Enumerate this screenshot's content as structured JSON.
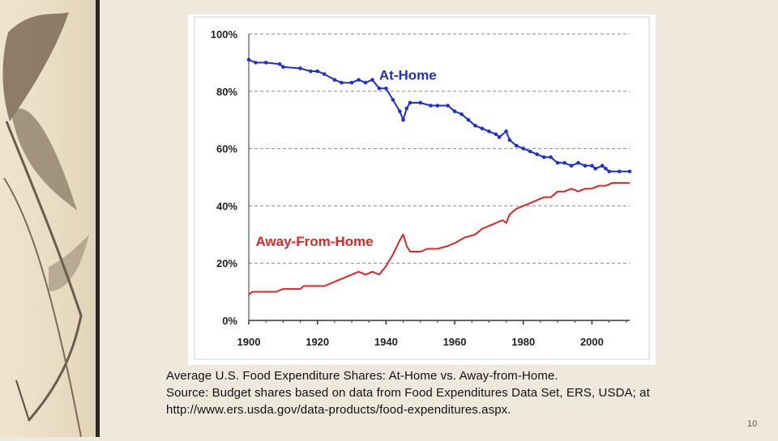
{
  "caption": {
    "line1": "Average U.S. Food Expenditure Shares: At-Home vs. Away-from-Home.",
    "line2": "Source: Budget shares based on data from Food Expenditures Data Set, ERS, USDA; at",
    "line3": "http://www.ers.usda.gov/data-products/food-expenditures.aspx."
  },
  "page_number": "10",
  "chart_data": {
    "type": "line",
    "title": "",
    "xlabel": "",
    "ylabel": "",
    "xlim": [
      1900,
      2011
    ],
    "ylim": [
      0,
      100
    ],
    "x_ticks": [
      1900,
      1920,
      1940,
      1960,
      1980,
      2000
    ],
    "x_tick_labels": [
      "1900",
      "1920",
      "1940",
      "1960",
      "1980",
      "2000"
    ],
    "y_ticks": [
      0,
      20,
      40,
      60,
      80,
      100
    ],
    "y_tick_labels": [
      "0%",
      "20%",
      "40%",
      "60%",
      "80%",
      "100%"
    ],
    "grid": "horizontal-dashed",
    "series": [
      {
        "name": "At-Home",
        "color": "#1f2fd6",
        "markers": true,
        "points": [
          [
            1900,
            91
          ],
          [
            1902,
            90
          ],
          [
            1905,
            90
          ],
          [
            1909,
            89.5
          ],
          [
            1910,
            88.5
          ],
          [
            1915,
            88
          ],
          [
            1918,
            87
          ],
          [
            1920,
            87
          ],
          [
            1922,
            86
          ],
          [
            1925,
            84
          ],
          [
            1927,
            83
          ],
          [
            1930,
            83
          ],
          [
            1932,
            84
          ],
          [
            1934,
            83
          ],
          [
            1936,
            84
          ],
          [
            1938,
            81
          ],
          [
            1940,
            81
          ],
          [
            1942,
            77
          ],
          [
            1944,
            73
          ],
          [
            1945,
            70
          ],
          [
            1946,
            74
          ],
          [
            1947,
            76
          ],
          [
            1950,
            76
          ],
          [
            1953,
            75
          ],
          [
            1955,
            75
          ],
          [
            1958,
            75
          ],
          [
            1960,
            73
          ],
          [
            1962,
            72
          ],
          [
            1964,
            70
          ],
          [
            1966,
            68
          ],
          [
            1968,
            67
          ],
          [
            1970,
            66
          ],
          [
            1972,
            65
          ],
          [
            1973,
            64
          ],
          [
            1975,
            66
          ],
          [
            1976,
            63
          ],
          [
            1978,
            61
          ],
          [
            1980,
            60
          ],
          [
            1982,
            59
          ],
          [
            1984,
            58
          ],
          [
            1986,
            57
          ],
          [
            1988,
            57
          ],
          [
            1990,
            55
          ],
          [
            1992,
            55
          ],
          [
            1994,
            54
          ],
          [
            1996,
            55
          ],
          [
            1998,
            54
          ],
          [
            2000,
            54
          ],
          [
            2001,
            53
          ],
          [
            2003,
            54
          ],
          [
            2004,
            53
          ],
          [
            2005,
            52
          ],
          [
            2008,
            52
          ],
          [
            2011,
            52
          ]
        ]
      },
      {
        "name": "Away-From-Home",
        "color": "#e02525",
        "markers": false,
        "points": [
          [
            1900,
            9
          ],
          [
            1901,
            10
          ],
          [
            1905,
            10
          ],
          [
            1908,
            10
          ],
          [
            1910,
            11
          ],
          [
            1915,
            11
          ],
          [
            1916,
            12
          ],
          [
            1920,
            12
          ],
          [
            1922,
            12
          ],
          [
            1924,
            13
          ],
          [
            1926,
            14
          ],
          [
            1928,
            15
          ],
          [
            1930,
            16
          ],
          [
            1932,
            17
          ],
          [
            1934,
            16
          ],
          [
            1936,
            17
          ],
          [
            1938,
            16
          ],
          [
            1940,
            19
          ],
          [
            1942,
            23
          ],
          [
            1944,
            28
          ],
          [
            1945,
            30
          ],
          [
            1946,
            26
          ],
          [
            1947,
            24
          ],
          [
            1950,
            24
          ],
          [
            1952,
            25
          ],
          [
            1955,
            25
          ],
          [
            1958,
            26
          ],
          [
            1960,
            27
          ],
          [
            1963,
            29
          ],
          [
            1966,
            30
          ],
          [
            1968,
            32
          ],
          [
            1970,
            33
          ],
          [
            1972,
            34
          ],
          [
            1974,
            35
          ],
          [
            1975,
            34
          ],
          [
            1976,
            37
          ],
          [
            1978,
            39
          ],
          [
            1980,
            40
          ],
          [
            1982,
            41
          ],
          [
            1984,
            42
          ],
          [
            1986,
            43
          ],
          [
            1988,
            43
          ],
          [
            1990,
            45
          ],
          [
            1992,
            45
          ],
          [
            1994,
            46
          ],
          [
            1996,
            45
          ],
          [
            1998,
            46
          ],
          [
            2000,
            46
          ],
          [
            2002,
            47
          ],
          [
            2004,
            47
          ],
          [
            2006,
            48
          ],
          [
            2008,
            48
          ],
          [
            2011,
            48
          ]
        ]
      }
    ],
    "annotations": [
      {
        "text": "At-Home",
        "series": "At-Home",
        "x": 1938,
        "y": 84
      },
      {
        "text": "Away-From-Home",
        "series": "Away-From-Home",
        "x": 1902,
        "y": 26
      }
    ]
  }
}
